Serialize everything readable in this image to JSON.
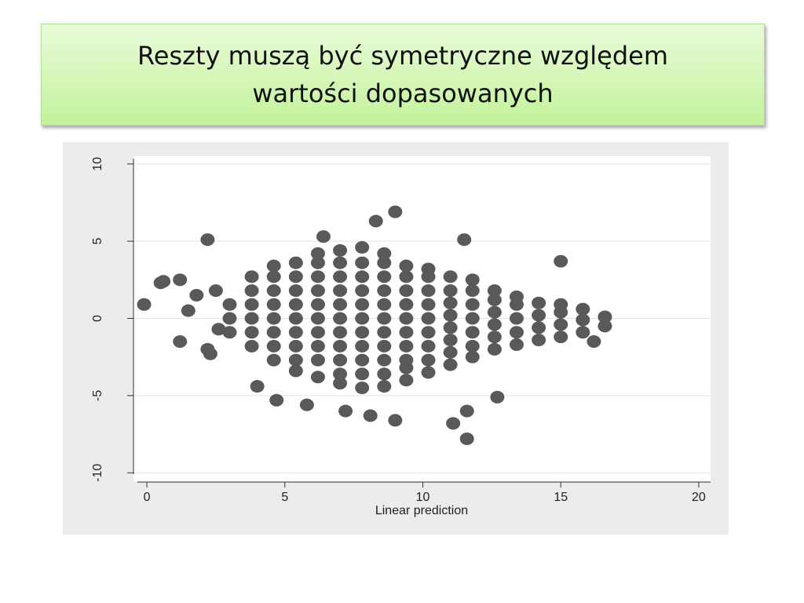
{
  "slide": {
    "title": [
      "Reszty muszą być symetryczne względem",
      "wartości dopasowanych"
    ]
  },
  "chart_data": {
    "type": "scatter",
    "xlabel": "Linear prediction",
    "color": "#595959",
    "grid": true,
    "xlim": [
      -0.4,
      20.4
    ],
    "ylim": [
      -10.5,
      10.5
    ],
    "xticks": [
      0,
      5,
      10,
      15,
      20
    ],
    "yticks": [
      -10,
      -5,
      0,
      5,
      10
    ],
    "x": [
      -0.1,
      0.6,
      0.5,
      1.2,
      1.2,
      2.2,
      2.2,
      2.3,
      8.3,
      9,
      11.5,
      15,
      11.6,
      11.1,
      12.7,
      9,
      7.2,
      5.8,
      4.7,
      4,
      6.4,
      16.2,
      1.5,
      1.8,
      2.5,
      2.6,
      11.6,
      8.1,
      3,
      3,
      3,
      3.8,
      3.8,
      3.8,
      3.8,
      3.8,
      3.8,
      4.6,
      4.6,
      4.6,
      4.6,
      4.6,
      4.6,
      4.6,
      4.6,
      5.4,
      5.4,
      5.4,
      5.4,
      5.4,
      5.4,
      5.4,
      5.4,
      5.4,
      6.2,
      6.2,
      6.2,
      6.2,
      6.2,
      6.2,
      6.2,
      6.2,
      6.2,
      6.2,
      7,
      7,
      7,
      7,
      7,
      7,
      7,
      7,
      7,
      7,
      7,
      7.8,
      7.8,
      7.8,
      7.8,
      7.8,
      7.8,
      7.8,
      7.8,
      7.8,
      7.8,
      7.8,
      8.6,
      8.6,
      8.6,
      8.6,
      8.6,
      8.6,
      8.6,
      8.6,
      8.6,
      8.6,
      8.6,
      9.4,
      9.4,
      9.4,
      9.4,
      9.4,
      9.4,
      9.4,
      9.4,
      9.4,
      9.4,
      10.2,
      10.2,
      10.2,
      10.2,
      10.2,
      10.2,
      10.2,
      10.2,
      10.2,
      11,
      11,
      11,
      11,
      11,
      11,
      11,
      11,
      11.8,
      11.8,
      11.8,
      11.8,
      11.8,
      11.8,
      11.8,
      12.6,
      12.6,
      12.6,
      12.6,
      12.6,
      12.6,
      13.4,
      13.4,
      13.4,
      13.4,
      13.4,
      14.2,
      14.2,
      14.2,
      14.2,
      15,
      15,
      15,
      15,
      15.8,
      15.8,
      15.8,
      16.6,
      16.6
    ],
    "values": [
      0.9,
      2.4,
      2.3,
      2.5,
      -1.5,
      5.1,
      -2,
      -2.3,
      6.3,
      6.9,
      5.1,
      3.7,
      -7.8,
      -6.8,
      -5.1,
      -6.6,
      -6,
      -5.6,
      -5.3,
      -4.4,
      5.3,
      -1.5,
      0.5,
      1.5,
      1.8,
      -0.7,
      -6,
      -6.3,
      -0.9,
      0,
      0.9,
      -1.8,
      -0.9,
      0,
      0.9,
      1.8,
      2.7,
      -2.7,
      -1.8,
      -0.9,
      0,
      0.9,
      1.8,
      2.7,
      3.4,
      -3.4,
      -2.7,
      -1.8,
      -0.9,
      0,
      0.9,
      1.8,
      2.7,
      3.6,
      -3.8,
      -2.7,
      -1.8,
      -0.9,
      0,
      0.9,
      1.8,
      2.7,
      3.6,
      4.2,
      -4.2,
      -3.6,
      -2.7,
      -1.8,
      -0.9,
      0,
      0.9,
      1.8,
      2.7,
      3.6,
      4.4,
      -4.5,
      -3.6,
      -2.7,
      -1.8,
      -0.9,
      0,
      0.9,
      1.8,
      2.7,
      3.6,
      4.6,
      -4.4,
      -3.6,
      -2.7,
      -1.8,
      -0.9,
      0,
      0.9,
      1.8,
      2.7,
      3.6,
      4.2,
      -4,
      -3.2,
      -2.7,
      -1.8,
      -0.9,
      0,
      0.9,
      1.8,
      2.7,
      3.4,
      -3.5,
      -2.7,
      -1.8,
      -0.9,
      0,
      0.9,
      1.8,
      2.7,
      3.2,
      -3,
      -2.2,
      -1.4,
      -0.6,
      0.2,
      1,
      1.8,
      2.7,
      -2.5,
      -1.8,
      -0.9,
      0,
      0.9,
      1.8,
      2.5,
      -2,
      -1.2,
      -0.4,
      0.4,
      1.2,
      1.8,
      -1.7,
      -0.9,
      0,
      0.9,
      1.4,
      -1.4,
      -0.6,
      0.2,
      1,
      -1.2,
      -0.4,
      0.4,
      0.9,
      -0.9,
      -0.1,
      0.6,
      -0.5,
      0.1
    ]
  }
}
